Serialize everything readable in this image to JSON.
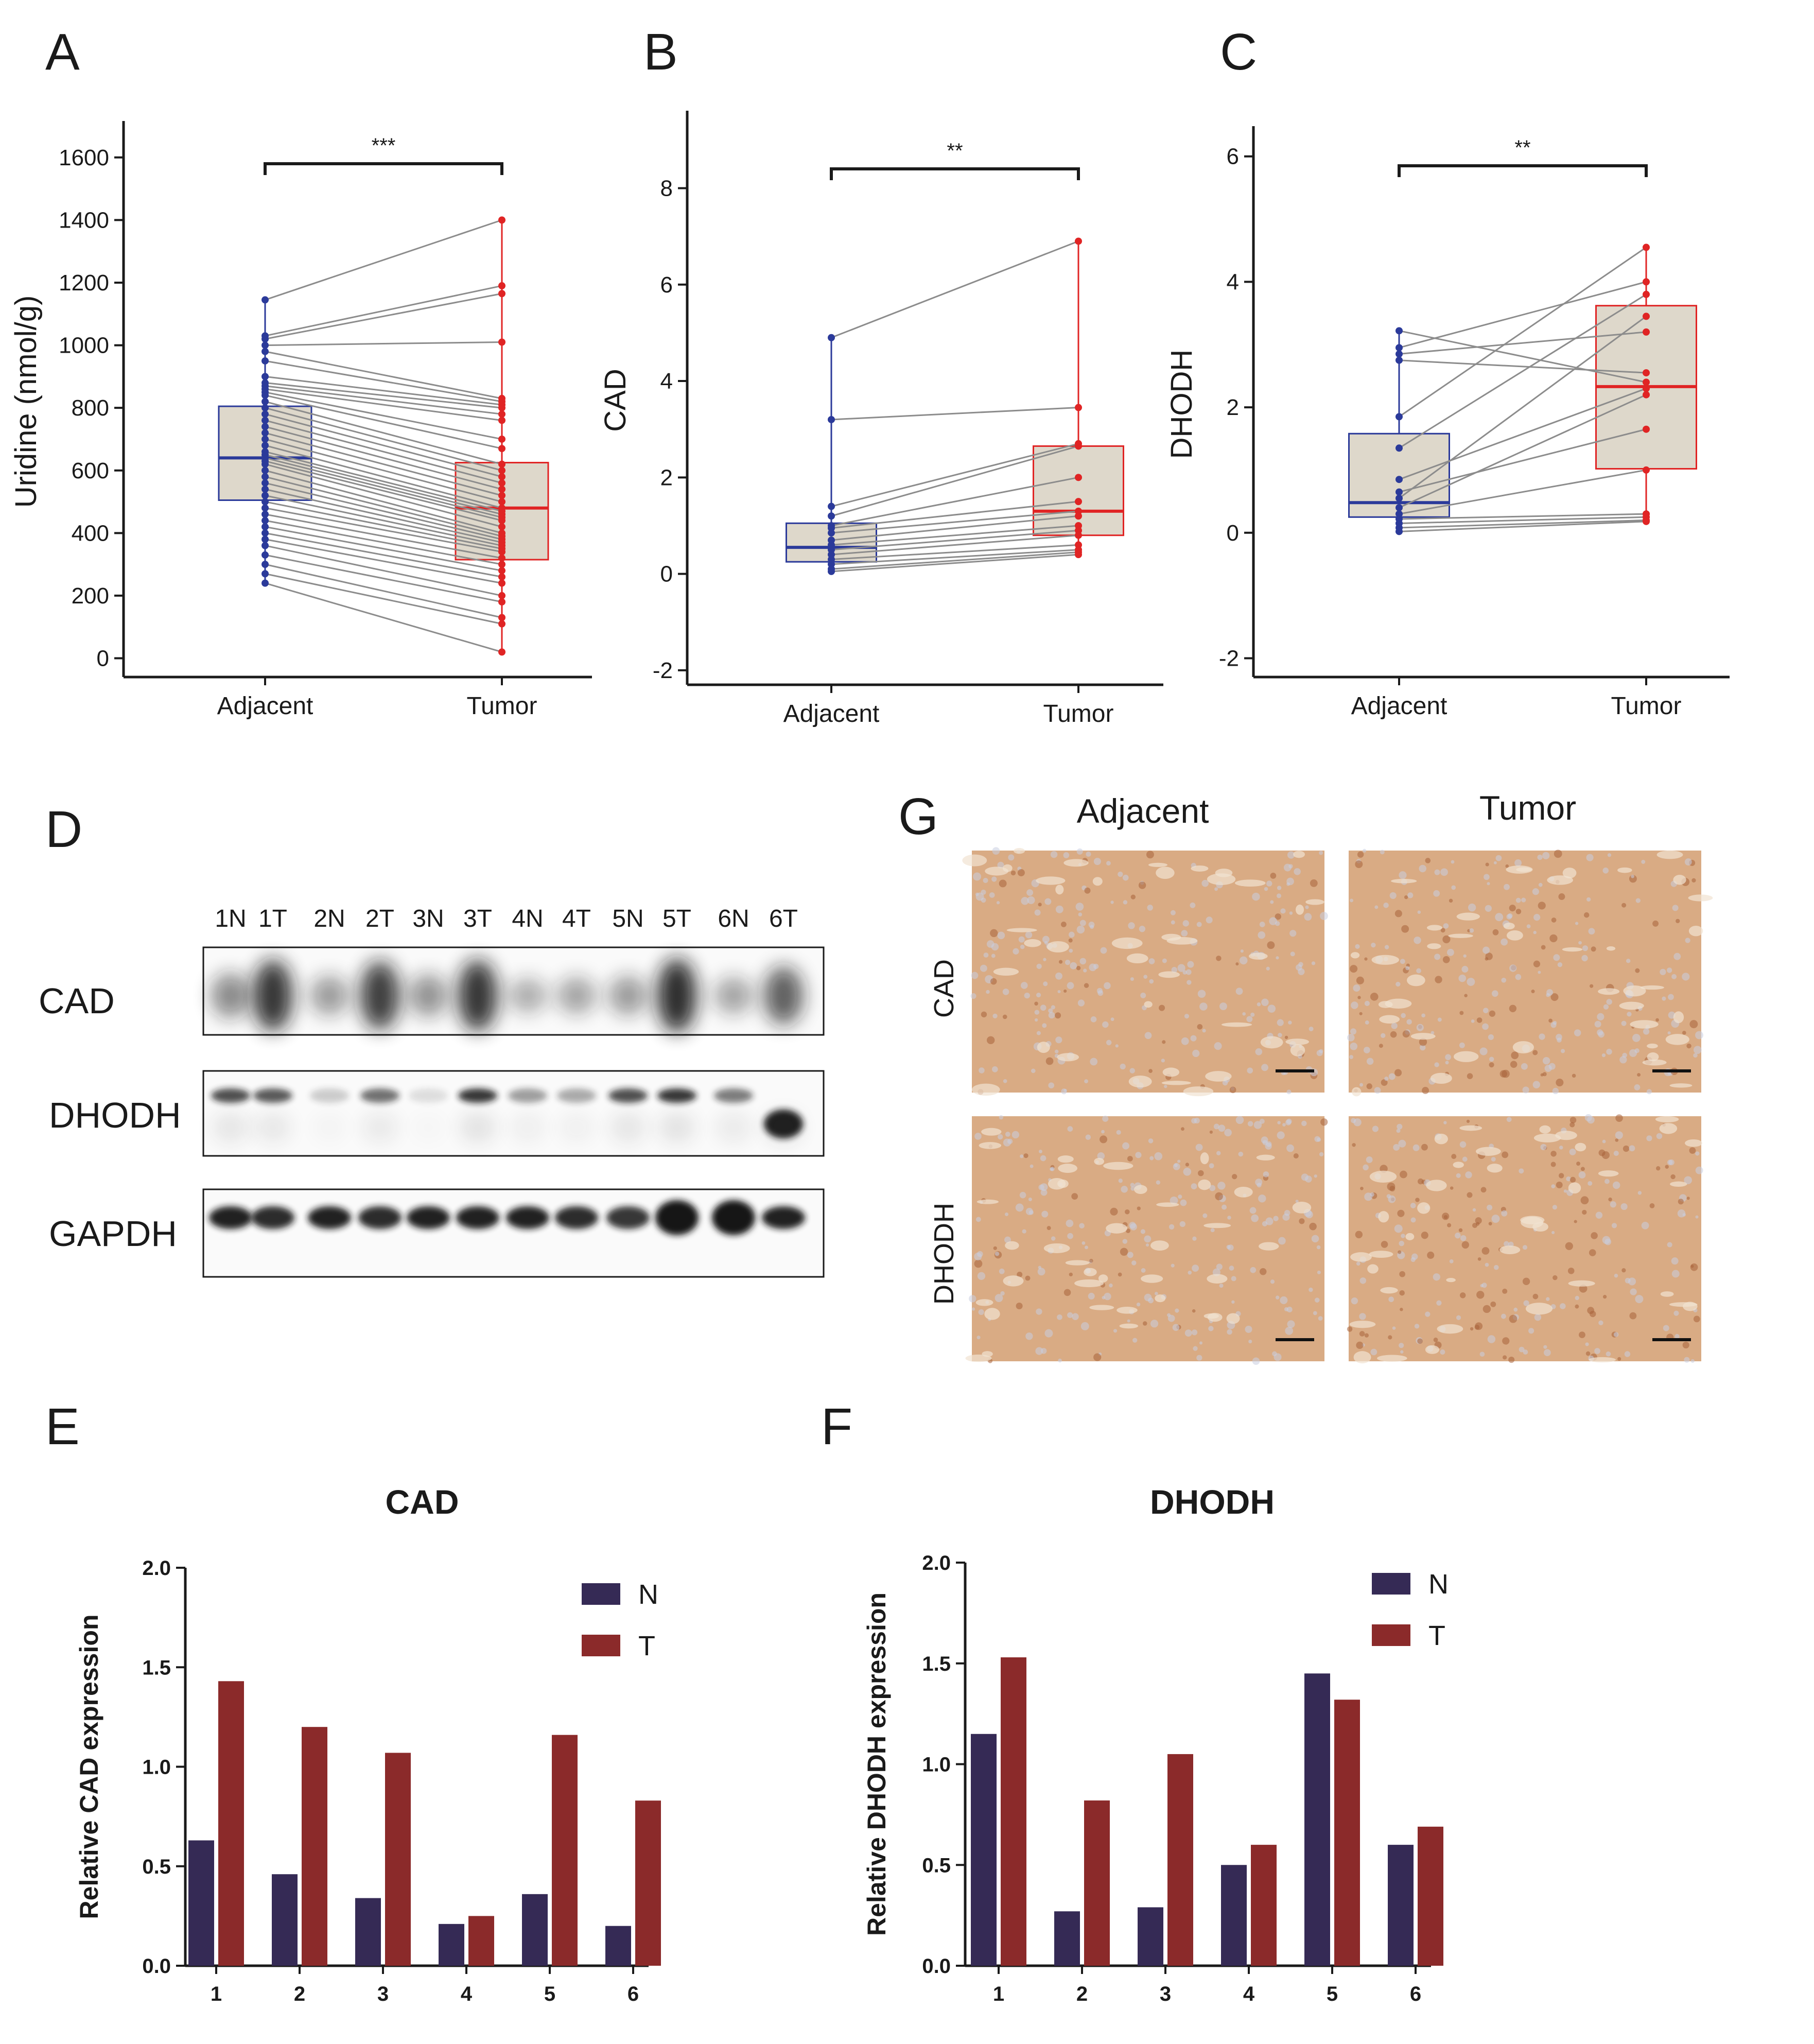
{
  "panel_labels": [
    "A",
    "B",
    "C",
    "D",
    "E",
    "F",
    "G"
  ],
  "colors": {
    "adjacent": "#2b3a9a",
    "tumor": "#e02424",
    "box_fill": "#ded8cb",
    "pair_line": "#8c8c8c",
    "bar_n": "#352a55",
    "bar_t": "#8b2a2a",
    "tissue": "#d9ab84",
    "blot_band": "#141414"
  },
  "western_blot": {
    "lanes": [
      "1N",
      "1T",
      "2N",
      "2T",
      "3N",
      "3T",
      "4N",
      "4T",
      "5N",
      "5T",
      "6N",
      "6T"
    ],
    "rows": [
      "CAD",
      "DHODH",
      "GAPDH"
    ]
  },
  "ihc": {
    "columns": [
      "Adjacent",
      "Tumor"
    ],
    "rows": [
      "CAD",
      "DHODH"
    ]
  },
  "chart_data": [
    {
      "panel": "A",
      "type": "box",
      "categories": [
        "Adjacent",
        "Tumor"
      ],
      "ylabel": "Uridine (nmol/g)",
      "ylim": [
        -60,
        1700
      ],
      "yticks": [
        0,
        200,
        400,
        600,
        800,
        1000,
        1200,
        1400,
        1600
      ],
      "significance": "***",
      "boxes": [
        {
          "name": "Adjacent",
          "q1": 505,
          "median": 640,
          "q3": 805,
          "whisker_low": 240,
          "whisker_high": 1145
        },
        {
          "name": "Tumor",
          "q1": 315,
          "median": 480,
          "q3": 625,
          "whisker_low": 15,
          "whisker_high": 1400
        }
      ],
      "pairs": [
        [
          1145,
          1400
        ],
        [
          1030,
          1190
        ],
        [
          1020,
          1165
        ],
        [
          1000,
          1010
        ],
        [
          980,
          830
        ],
        [
          950,
          820
        ],
        [
          900,
          810
        ],
        [
          880,
          800
        ],
        [
          870,
          780
        ],
        [
          860,
          760
        ],
        [
          850,
          700
        ],
        [
          840,
          670
        ],
        [
          820,
          620
        ],
        [
          800,
          600
        ],
        [
          780,
          580
        ],
        [
          760,
          560
        ],
        [
          740,
          540
        ],
        [
          720,
          520
        ],
        [
          700,
          500
        ],
        [
          680,
          480
        ],
        [
          660,
          470
        ],
        [
          650,
          460
        ],
        [
          640,
          450
        ],
        [
          630,
          440
        ],
        [
          620,
          420
        ],
        [
          600,
          400
        ],
        [
          580,
          390
        ],
        [
          560,
          380
        ],
        [
          540,
          370
        ],
        [
          520,
          360
        ],
        [
          500,
          350
        ],
        [
          480,
          340
        ],
        [
          460,
          320
        ],
        [
          440,
          300
        ],
        [
          420,
          280
        ],
        [
          400,
          260
        ],
        [
          380,
          240
        ],
        [
          360,
          200
        ],
        [
          330,
          180
        ],
        [
          300,
          130
        ],
        [
          270,
          110
        ],
        [
          240,
          20
        ]
      ]
    },
    {
      "panel": "B",
      "type": "box",
      "categories": [
        "Adjacent",
        "Tumor"
      ],
      "ylabel": "CAD",
      "ylim": [
        -2.3,
        9.5
      ],
      "yticks": [
        -2,
        0,
        2,
        4,
        6,
        8
      ],
      "significance": "**",
      "boxes": [
        {
          "name": "Adjacent",
          "q1": 0.25,
          "median": 0.55,
          "q3": 1.05,
          "whisker_low": 0.05,
          "whisker_high": 4.9
        },
        {
          "name": "Tumor",
          "q1": 0.8,
          "median": 1.3,
          "q3": 2.65,
          "whisker_low": 0.4,
          "whisker_high": 6.9
        }
      ],
      "pairs": [
        [
          4.9,
          6.9
        ],
        [
          3.2,
          3.45
        ],
        [
          1.4,
          2.7
        ],
        [
          1.2,
          2.65
        ],
        [
          1.0,
          2.0
        ],
        [
          0.95,
          1.5
        ],
        [
          0.85,
          1.3
        ],
        [
          0.7,
          1.2
        ],
        [
          0.6,
          1.0
        ],
        [
          0.5,
          0.9
        ],
        [
          0.4,
          0.8
        ],
        [
          0.3,
          0.6
        ],
        [
          0.2,
          0.5
        ],
        [
          0.1,
          0.45
        ],
        [
          0.05,
          0.4
        ]
      ]
    },
    {
      "panel": "C",
      "type": "box",
      "categories": [
        "Adjacent",
        "Tumor"
      ],
      "ylabel": "DHODH",
      "ylim": [
        -2.3,
        6.4
      ],
      "yticks": [
        -2,
        0,
        2,
        4,
        6
      ],
      "significance": "**",
      "boxes": [
        {
          "name": "Adjacent",
          "q1": 0.25,
          "median": 0.48,
          "q3": 1.58,
          "whisker_low": 0.02,
          "whisker_high": 3.22
        },
        {
          "name": "Tumor",
          "q1": 1.02,
          "median": 2.33,
          "q3": 3.62,
          "whisker_low": 0.18,
          "whisker_high": 4.55
        }
      ],
      "pairs": [
        [
          3.22,
          2.4
        ],
        [
          2.95,
          4.0
        ],
        [
          2.85,
          3.2
        ],
        [
          2.75,
          2.55
        ],
        [
          1.85,
          4.55
        ],
        [
          1.35,
          3.8
        ],
        [
          0.85,
          2.3
        ],
        [
          0.65,
          1.65
        ],
        [
          0.55,
          3.45
        ],
        [
          0.4,
          2.2
        ],
        [
          0.3,
          1.0
        ],
        [
          0.22,
          0.3
        ],
        [
          0.15,
          0.25
        ],
        [
          0.08,
          0.2
        ],
        [
          0.02,
          0.18
        ]
      ]
    },
    {
      "panel": "E",
      "type": "bar",
      "title": "CAD",
      "ylabel": "Relative CAD  expression",
      "categories": [
        "1",
        "2",
        "3",
        "4",
        "5",
        "6"
      ],
      "ylim": [
        0,
        2.0
      ],
      "yticks": [
        "0.0",
        "0.5",
        "1.0",
        "1.5",
        "2.0"
      ],
      "series": [
        {
          "name": "N",
          "values": [
            0.63,
            0.46,
            0.34,
            0.21,
            0.36,
            0.2
          ]
        },
        {
          "name": "T",
          "values": [
            1.43,
            1.2,
            1.07,
            0.25,
            1.16,
            0.83
          ]
        }
      ]
    },
    {
      "panel": "F",
      "type": "bar",
      "title": "DHODH",
      "ylabel": "Relative DHODH expression",
      "categories": [
        "1",
        "2",
        "3",
        "4",
        "5",
        "6"
      ],
      "ylim": [
        0,
        2.0
      ],
      "yticks": [
        "0.0",
        "0.5",
        "1.0",
        "1.5",
        "2.0"
      ],
      "series": [
        {
          "name": "N",
          "values": [
            1.15,
            0.27,
            0.29,
            0.5,
            1.45,
            0.6
          ]
        },
        {
          "name": "T",
          "values": [
            1.53,
            0.82,
            1.05,
            0.6,
            1.32,
            0.69
          ]
        }
      ]
    }
  ]
}
